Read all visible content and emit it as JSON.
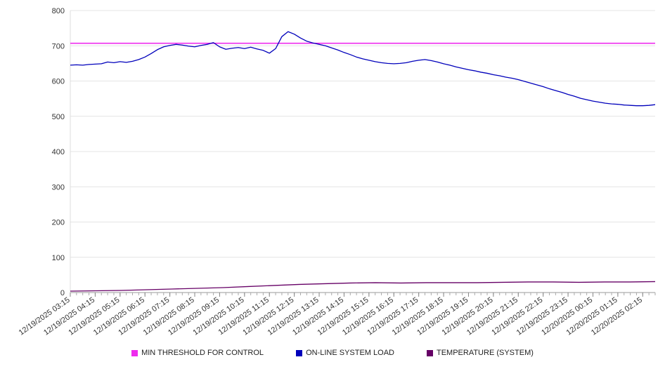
{
  "chart_data": {
    "type": "line",
    "title": "",
    "xlabel": "",
    "ylabel": "",
    "ylim": [
      0,
      800
    ],
    "grid": true,
    "legend_position": "bottom",
    "y_ticks": [
      0,
      100,
      200,
      300,
      400,
      500,
      600,
      700,
      800
    ],
    "x_labels": [
      "12/19/2025 03:15",
      "12/19/2025 04:15",
      "12/19/2025 05:15",
      "12/19/2025 06:15",
      "12/19/2025 07:15",
      "12/19/2025 08:15",
      "12/19/2025 09:15",
      "12/19/2025 10:15",
      "12/19/2025 11:15",
      "12/19/2025 12:15",
      "12/19/2025 13:15",
      "12/19/2025 14:15",
      "12/19/2025 15:15",
      "12/19/2025 16:15",
      "12/19/2025 17:15",
      "12/19/2025 18:15",
      "12/19/2025 19:15",
      "12/19/2025 20:15",
      "12/19/2025 21:15",
      "12/19/2025 22:15",
      "12/19/2025 23:15",
      "12/20/2025 00:15",
      "12/20/2025 01:15",
      "12/20/2025 02:15"
    ],
    "series": [
      {
        "name": "MIN THRESHOLD FOR CONTROL",
        "color": "#ee2bee",
        "values": [
          707,
          707
        ]
      },
      {
        "name": "ON-LINE SYSTEM LOAD",
        "color": "#0000bb",
        "values": [
          645,
          646,
          645,
          647,
          648,
          649,
          654,
          652,
          655,
          653,
          656,
          661,
          668,
          678,
          689,
          697,
          701,
          704,
          702,
          699,
          697,
          701,
          704,
          709,
          697,
          690,
          693,
          695,
          692,
          696,
          691,
          687,
          679,
          692,
          726,
          740,
          733,
          722,
          713,
          708,
          704,
          700,
          694,
          688,
          681,
          675,
          668,
          663,
          659,
          655,
          652,
          650,
          649,
          650,
          652,
          656,
          659,
          661,
          658,
          654,
          649,
          645,
          640,
          636,
          632,
          629,
          625,
          622,
          618,
          615,
          611,
          608,
          604,
          599,
          594,
          589,
          584,
          578,
          573,
          568,
          562,
          557,
          551,
          547,
          543,
          540,
          537,
          535,
          534,
          532,
          531,
          530,
          530,
          531,
          533
        ]
      },
      {
        "name": "TEMPERATURE (SYSTEM)",
        "color": "#660066",
        "values": [
          4,
          5,
          6,
          8,
          10,
          12,
          14,
          17,
          20,
          23,
          25,
          27,
          28,
          27,
          28,
          28,
          28,
          29,
          30,
          30,
          29,
          30,
          30,
          31
        ]
      }
    ]
  },
  "legend": {
    "items": [
      {
        "label": "MIN THRESHOLD FOR CONTROL"
      },
      {
        "label": "ON-LINE SYSTEM LOAD"
      },
      {
        "label": "TEMPERATURE (SYSTEM)"
      }
    ]
  }
}
